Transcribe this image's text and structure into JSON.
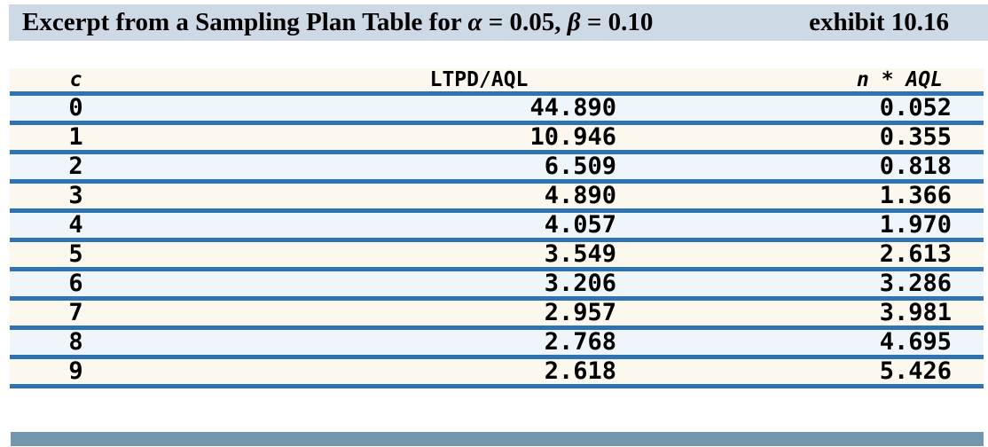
{
  "header": {
    "title_part1": "Excerpt from a Sampling Plan Table for ",
    "alpha_symbol": "α",
    "title_part2": " = 0.05, ",
    "beta_symbol": "β",
    "title_part3": " = 0.10",
    "exhibit_label": "exhibit 10.16"
  },
  "chart_data": {
    "type": "table",
    "title": "Excerpt from a Sampling Plan Table for α = 0.05, β = 0.10",
    "exhibit": "exhibit 10.16",
    "columns": [
      "c",
      "LTPD/AQL",
      "n * AQL"
    ],
    "rows": [
      {
        "c": "0",
        "ltpd_aql": "44.890",
        "n_aql": "0.052"
      },
      {
        "c": "1",
        "ltpd_aql": "10.946",
        "n_aql": "0.355"
      },
      {
        "c": "2",
        "ltpd_aql": "6.509",
        "n_aql": "0.818"
      },
      {
        "c": "3",
        "ltpd_aql": "4.890",
        "n_aql": "1.366"
      },
      {
        "c": "4",
        "ltpd_aql": "4.057",
        "n_aql": "1.970"
      },
      {
        "c": "5",
        "ltpd_aql": "3.549",
        "n_aql": "2.613"
      },
      {
        "c": "6",
        "ltpd_aql": "3.206",
        "n_aql": "3.286"
      },
      {
        "c": "7",
        "ltpd_aql": "2.957",
        "n_aql": "3.981"
      },
      {
        "c": "8",
        "ltpd_aql": "2.768",
        "n_aql": "4.695"
      },
      {
        "c": "9",
        "ltpd_aql": "2.618",
        "n_aql": "5.426"
      }
    ],
    "layout": {
      "row_stripe_colors": [
        "#eff6fb",
        "#fdf8ee"
      ],
      "grid": "horizontal rules only"
    }
  },
  "colors": {
    "title_bar_bg": "#cdd9e5",
    "row_cream_bg": "#fdf8ee",
    "row_blue_bg": "#eff6fb",
    "rule_blue": "#2e74b5",
    "bottom_bar": "#7398ae",
    "text": "#000000"
  }
}
